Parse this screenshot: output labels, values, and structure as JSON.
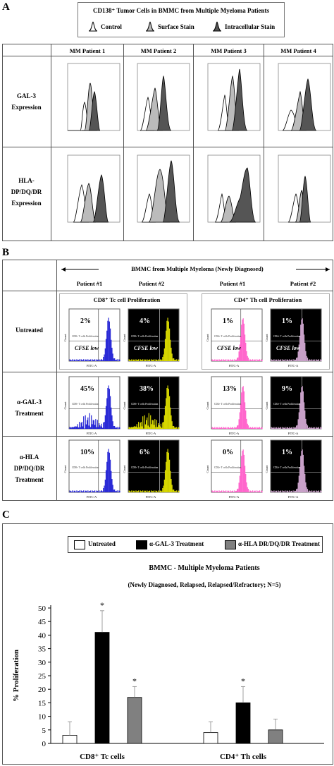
{
  "panelA": {
    "letter": "A",
    "legend": {
      "title": "CD138⁺ Tumor Cells in BMMC from Multiple Myeloma Patients",
      "items": [
        "Control",
        "Surface Stain",
        "Intracellular Stain"
      ]
    },
    "columns": [
      "MM Patient 1",
      "MM Patient 2",
      "MM Patient 3",
      "MM Patient 4"
    ],
    "rows": [
      [
        "GAL-3",
        "Expression"
      ],
      [
        "HLA-",
        "DP/DQ/DR",
        "Expression"
      ]
    ]
  },
  "panelB": {
    "letter": "B",
    "banner": "BMMC from Multiple Myeloma (Newly Diagnosed)",
    "patients": [
      "Patient #1",
      "Patient #2",
      "Patient #1",
      "Patient #2"
    ],
    "groups": [
      "CD8⁺ Tc cell Proliferation",
      "CD4⁺ Th cell Proliferation"
    ],
    "rows": [
      [
        "Untreated"
      ],
      [
        "α-GAL-3",
        "Treatment"
      ],
      [
        "α-HLA",
        "DP/DQ/DR",
        "Treatment"
      ]
    ],
    "cells": [
      [
        "2%",
        "4%",
        "1%",
        "1%"
      ],
      [
        "45%",
        "38%",
        "13%",
        "9%"
      ],
      [
        "10%",
        "6%",
        "0%",
        "1%"
      ]
    ],
    "cfse_label": "CFSE low",
    "gate_label_cd8": "CD8+ T cells Proliferation",
    "gate_label_cd4": "CD4+ T cells Proliferation",
    "axis_x": "FITC-A",
    "axis_y": "Count"
  },
  "panelC": {
    "letter": "C",
    "legend": [
      "Untreated",
      "α-GAL-3 Treatment",
      "α-HLA DR/DQ/DR Treatment"
    ],
    "chart_data": {
      "type": "bar",
      "title": "BMMC - Multiple Myeloma Patients",
      "subtitle": "(Newly Diagnosed, Relapsed, Relapsed/Refractory; N=5)",
      "ylabel": "% Proliferation",
      "xlabel": "",
      "categories": [
        "CD8⁺ Tc cells",
        "CD4⁺ Th cells"
      ],
      "ylim": [
        0,
        50
      ],
      "yticks": [
        0,
        5,
        10,
        15,
        20,
        25,
        30,
        35,
        40,
        45,
        50
      ],
      "series": [
        {
          "name": "Untreated",
          "values": [
            3,
            4
          ],
          "errors": [
            5,
            4
          ],
          "color": "#ffffff",
          "significant": [
            false,
            false
          ]
        },
        {
          "name": "α-GAL-3 Treatment",
          "values": [
            41,
            15
          ],
          "errors": [
            8,
            6
          ],
          "color": "#000000",
          "significant": [
            true,
            true
          ]
        },
        {
          "name": "α-HLA DR/DQ/DR Treatment",
          "values": [
            17,
            5
          ],
          "errors": [
            4,
            4
          ],
          "color": "#808080",
          "significant": [
            true,
            false
          ]
        }
      ],
      "significance_mark": "*",
      "grid": false
    }
  }
}
